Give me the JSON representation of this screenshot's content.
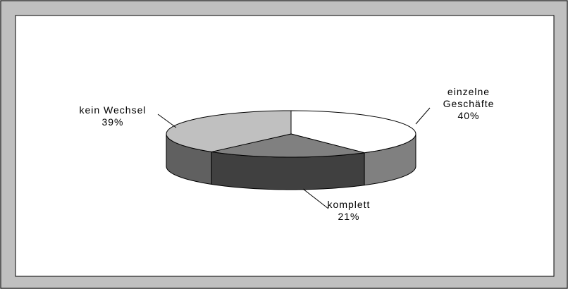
{
  "chart_data": {
    "type": "pie3d",
    "categories": [
      "einzelne Geschäfte",
      "komplett",
      "kein Wechsel"
    ],
    "values": [
      40,
      21,
      39
    ],
    "value_labels": [
      "40%",
      "21%",
      "39%"
    ],
    "colors": [
      "#ffffff",
      "#808080",
      "#c0c0c0"
    ],
    "side_colors": [
      "#808080",
      "#404040",
      "#606060"
    ]
  }
}
